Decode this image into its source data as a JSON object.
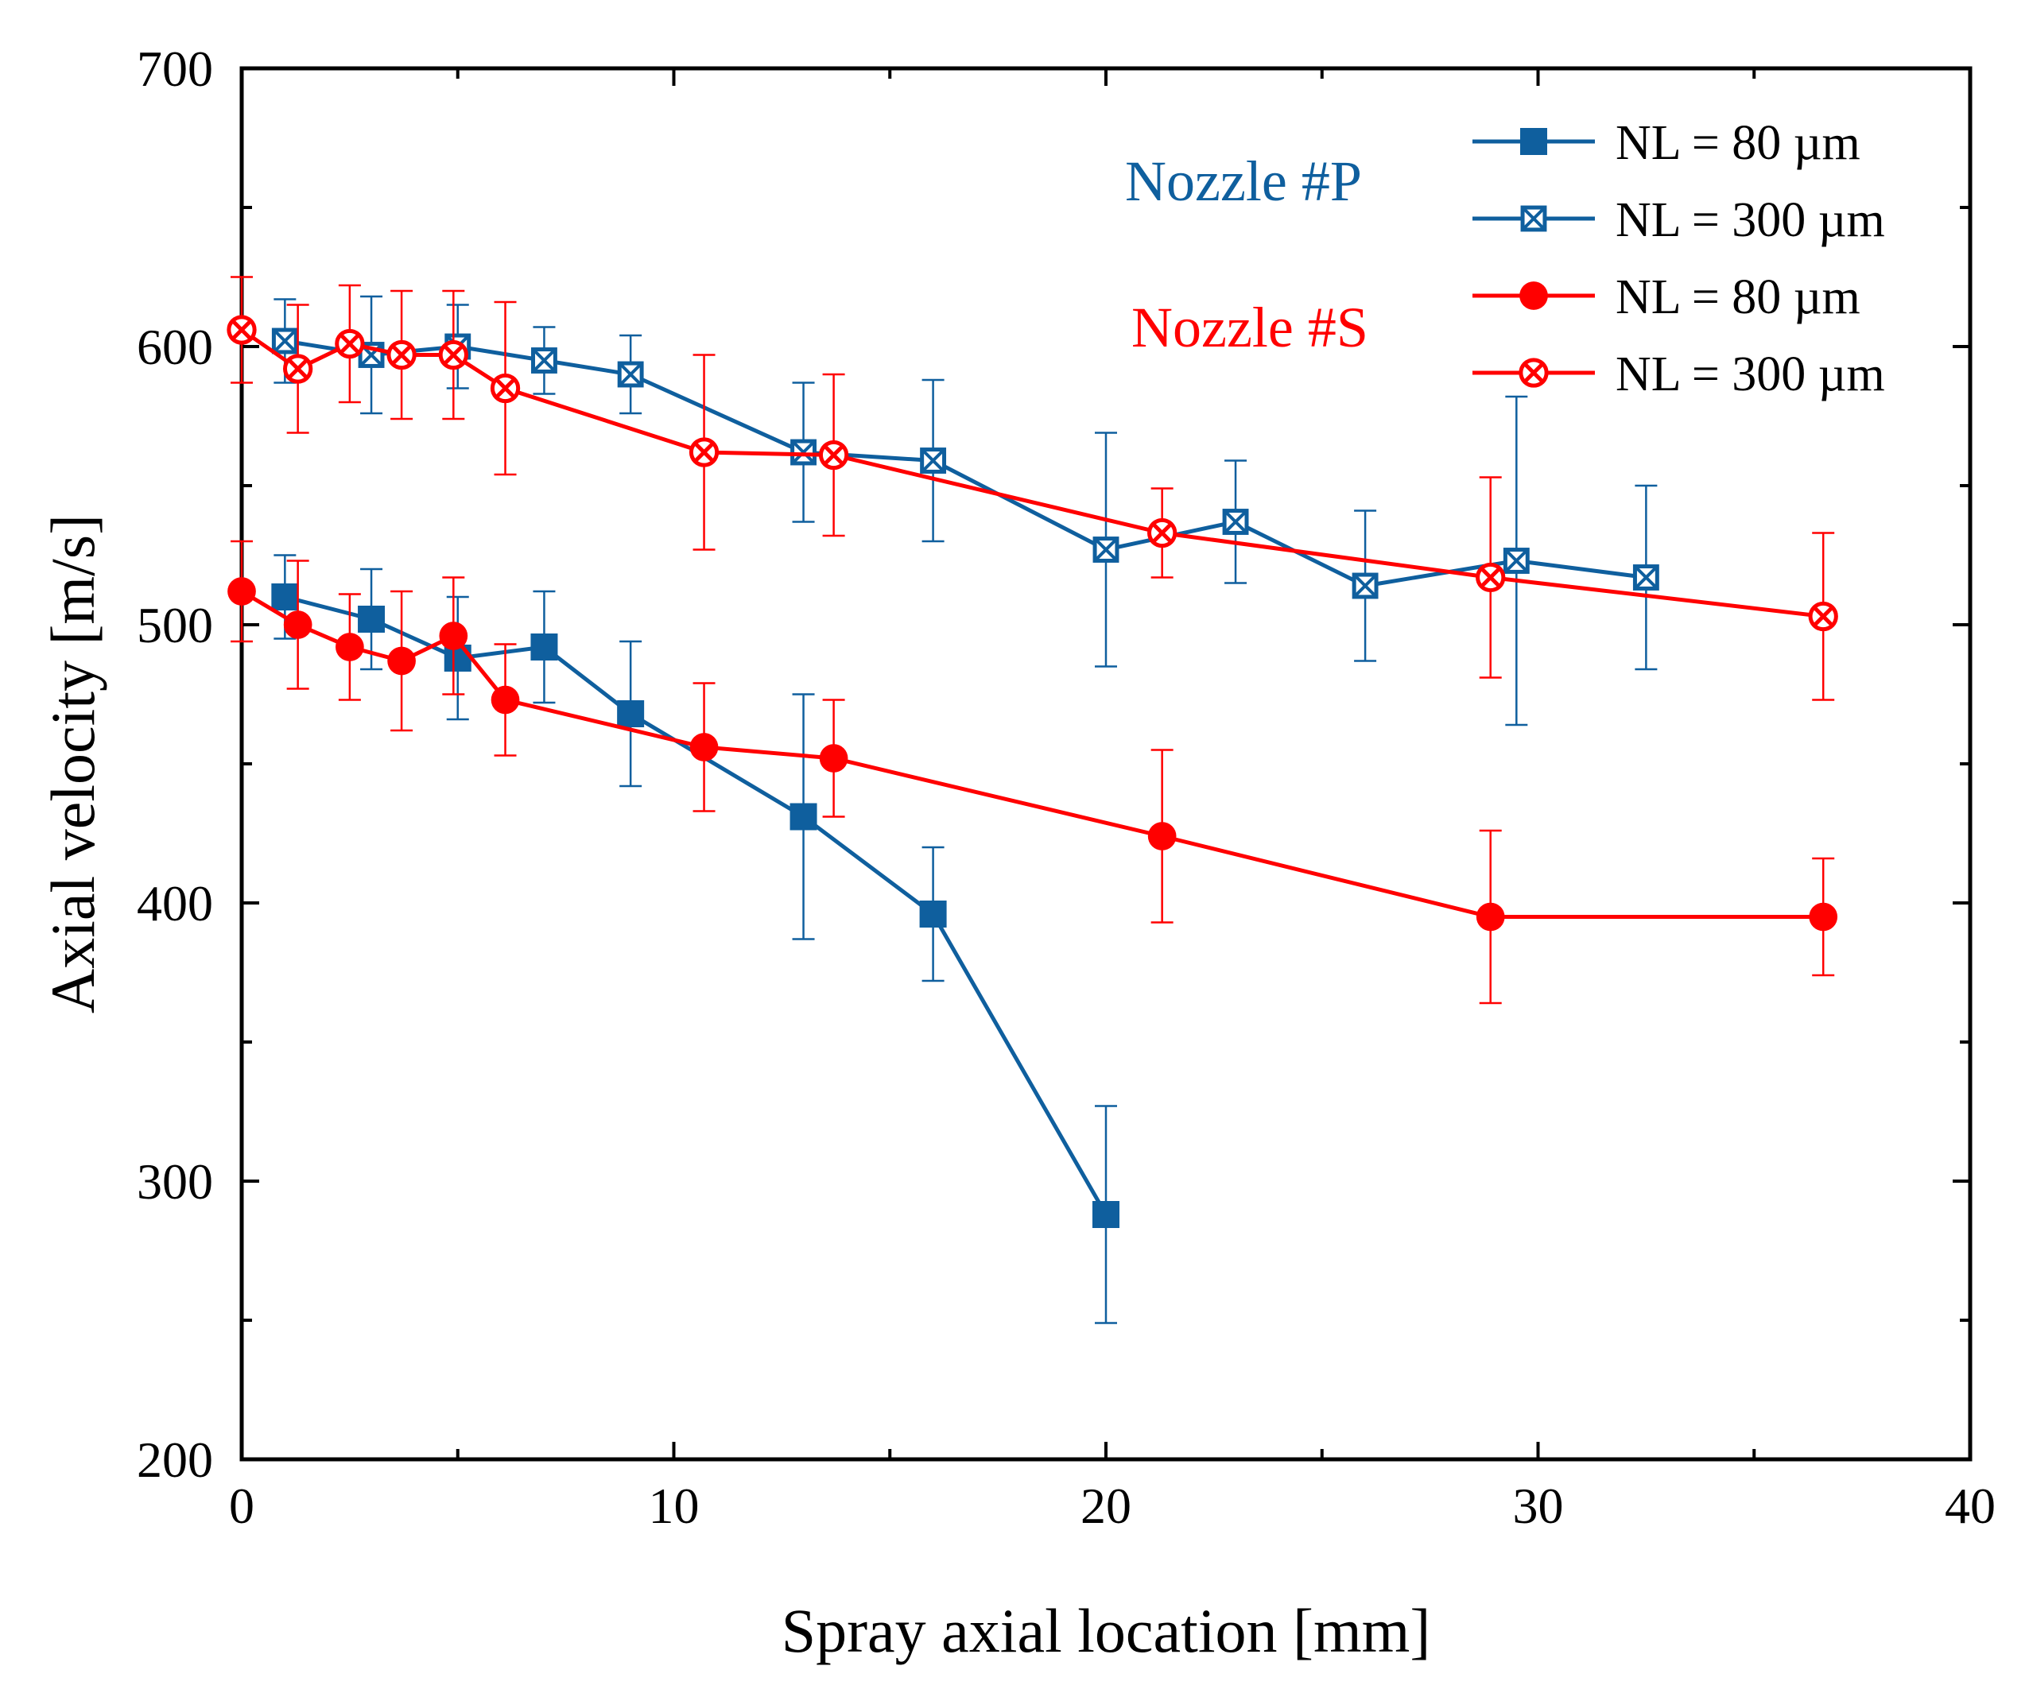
{
  "chart_data": {
    "type": "line",
    "title": "",
    "xlabel": "Spray axial location [mm]",
    "ylabel": "Axial velocity [m/s]",
    "xlim": [
      0,
      40
    ],
    "ylim": [
      200,
      700
    ],
    "x_ticks": [
      0,
      10,
      20,
      30,
      40
    ],
    "y_ticks": [
      200,
      300,
      400,
      500,
      600,
      700
    ],
    "x_tick_labels": [
      "0",
      "10",
      "20",
      "30",
      "40"
    ],
    "y_tick_labels": [
      "200",
      "300",
      "400",
      "500",
      "600",
      "700"
    ],
    "grid": false,
    "legend_position": "top-right",
    "annotations": [
      {
        "text": "Nozzle #P",
        "color": "#0f5f9e"
      },
      {
        "text": "Nozzle #S",
        "color": "#ff0000"
      }
    ],
    "series": [
      {
        "name": "NL = 80 µm",
        "nozzle": "Nozzle #P",
        "color": "#0f5f9e",
        "marker": "filled-square",
        "x": [
          1,
          3,
          5,
          7,
          9,
          13,
          16,
          20
        ],
        "y": [
          510,
          502,
          488,
          492,
          468,
          431,
          396,
          288
        ],
        "err": [
          15,
          18,
          22,
          20,
          26,
          44,
          24,
          39
        ]
      },
      {
        "name": "NL = 300 µm",
        "nozzle": "Nozzle #P",
        "color": "#0f5f9e",
        "marker": "crossed-square",
        "x": [
          1,
          3,
          5,
          7,
          9,
          13,
          16,
          20,
          23,
          26,
          29.5,
          32.5
        ],
        "y": [
          602,
          597,
          600,
          595,
          590,
          562,
          559,
          527,
          537,
          514,
          523,
          517
        ],
        "err": [
          15,
          21,
          15,
          12,
          14,
          25,
          29,
          42,
          22,
          27,
          59,
          33
        ]
      },
      {
        "name": "NL = 80 µm",
        "nozzle": "Nozzle #S",
        "color": "#ff0000",
        "marker": "filled-circle",
        "x": [
          0,
          1.3,
          2.5,
          3.7,
          4.9,
          6.1,
          10.7,
          13.7,
          21.3,
          28.9,
          36.6
        ],
        "y": [
          512,
          500,
          492,
          487,
          496,
          473,
          456,
          452,
          424,
          395,
          395
        ],
        "err": [
          18,
          23,
          19,
          25,
          21,
          20,
          23,
          21,
          31,
          31,
          21
        ]
      },
      {
        "name": "NL = 300 µm",
        "nozzle": "Nozzle #S",
        "color": "#ff0000",
        "marker": "crossed-circle",
        "x": [
          0,
          1.3,
          2.5,
          3.7,
          4.9,
          6.1,
          10.7,
          13.7,
          21.3,
          28.9,
          36.6
        ],
        "y": [
          606,
          592,
          601,
          597,
          597,
          585,
          562,
          561,
          533,
          517,
          503
        ],
        "err": [
          19,
          23,
          21,
          23,
          23,
          31,
          35,
          29,
          16,
          36,
          30
        ]
      }
    ]
  }
}
